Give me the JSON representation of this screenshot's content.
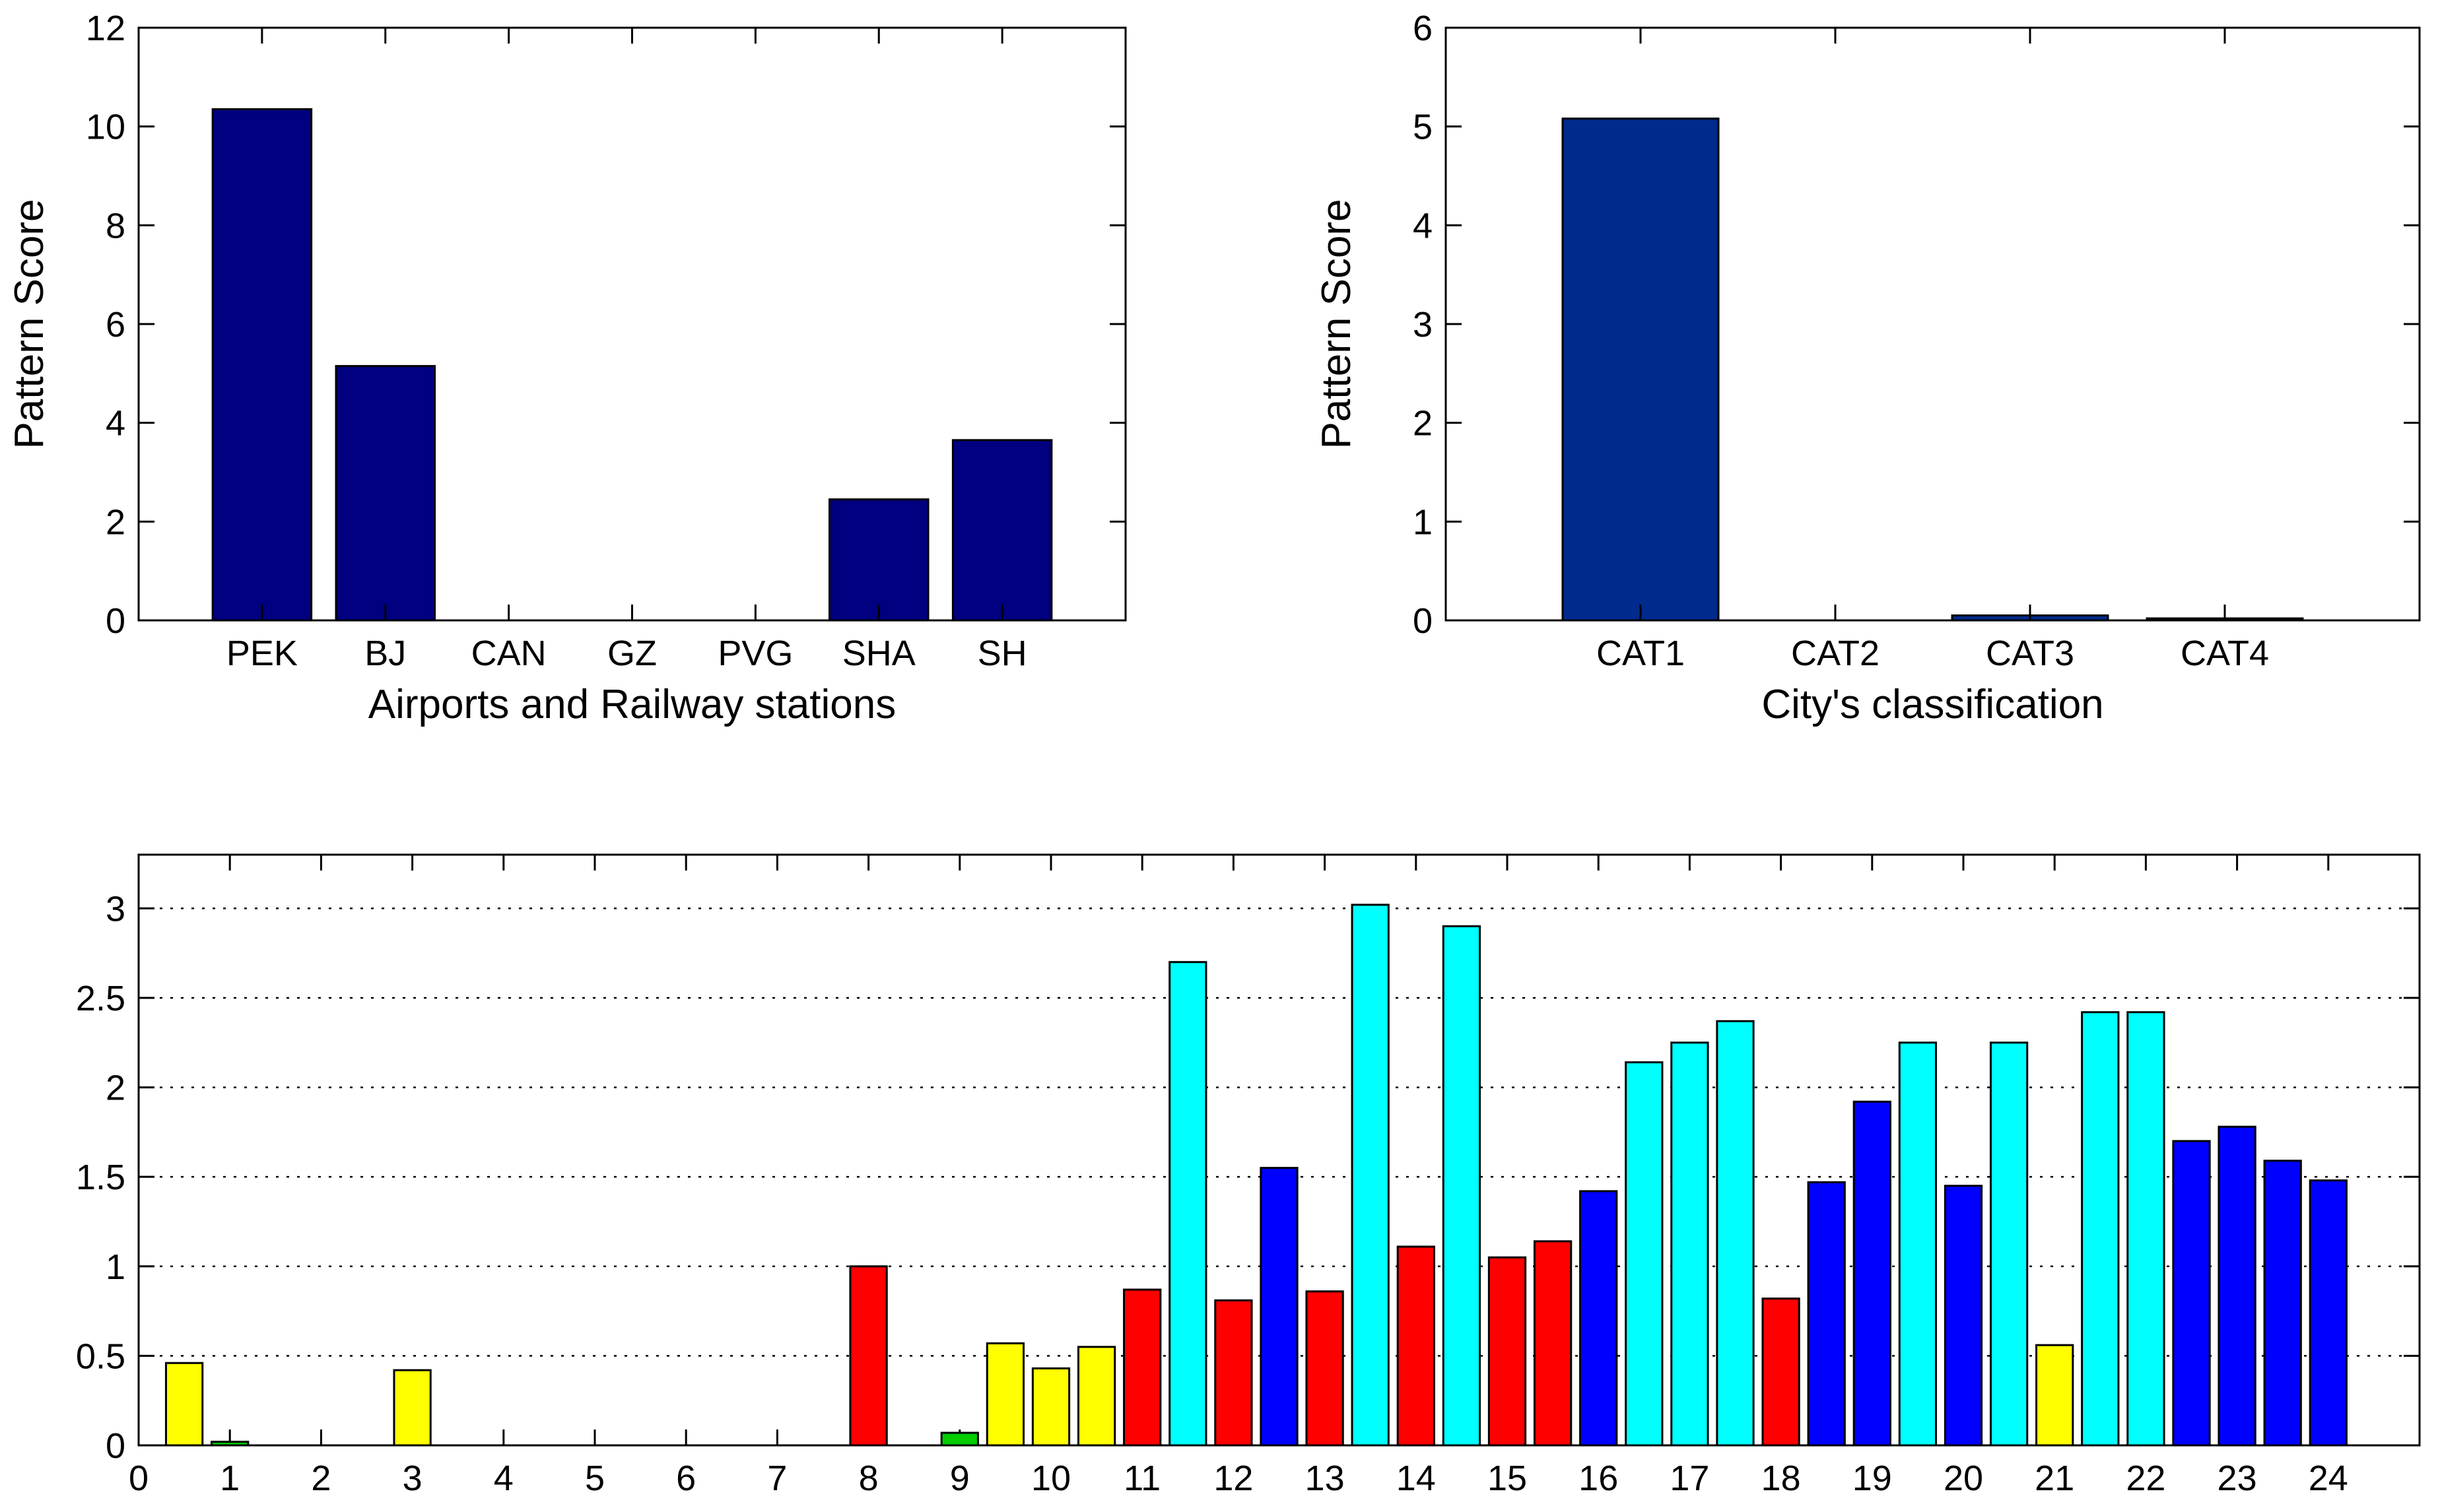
{
  "colors": {
    "navy": "#000080",
    "cat_blue": "#002a8c",
    "yellow": "#ffff00",
    "green": "#00cc00",
    "red": "#ff0000",
    "blue": "#0000ff",
    "cyan": "#00ffff"
  },
  "chart_data": [
    {
      "type": "bar",
      "xlabel": "Airports and Railway stations",
      "ylabel": "Pattern Score",
      "categories": [
        "PEK",
        "BJ",
        "CAN",
        "GZ",
        "PVG",
        "SHA",
        "SH"
      ],
      "values": [
        10.35,
        5.15,
        0,
        0,
        0,
        2.45,
        3.65
      ],
      "ylim": [
        0,
        12
      ],
      "yticks": [
        "0",
        "2",
        "4",
        "6",
        "8",
        "10",
        "12"
      ],
      "grid": false
    },
    {
      "type": "bar",
      "xlabel": "City's classification",
      "ylabel": "Pattern Score",
      "categories": [
        "CAT1",
        "CAT2",
        "CAT3",
        "CAT4"
      ],
      "values": [
        5.08,
        0,
        0.05,
        0.02
      ],
      "ylim": [
        0,
        6
      ],
      "yticks": [
        "0",
        "1",
        "2",
        "3",
        "4",
        "5",
        "6"
      ],
      "grid": false
    },
    {
      "type": "bar",
      "xlabel": "",
      "ylabel": "",
      "xlim": [
        0,
        25
      ],
      "ylim": [
        0,
        3.3
      ],
      "xticks": [
        "0",
        "1",
        "2",
        "3",
        "4",
        "5",
        "6",
        "7",
        "8",
        "9",
        "10",
        "11",
        "12",
        "13",
        "14",
        "15",
        "16",
        "17",
        "18",
        "19",
        "20",
        "21",
        "22",
        "23",
        "24"
      ],
      "yticks": [
        "0",
        "0.5",
        "1",
        "1.5",
        "2",
        "2.5",
        "3"
      ],
      "grid": "y-dotted",
      "bars": [
        {
          "x": 0.5,
          "value": 0.46,
          "color": "yellow"
        },
        {
          "x": 1.0,
          "value": 0.02,
          "color": "green"
        },
        {
          "x": 3.0,
          "value": 0.42,
          "color": "yellow"
        },
        {
          "x": 8.0,
          "value": 1.0,
          "color": "red"
        },
        {
          "x": 9.0,
          "value": 0.07,
          "color": "green"
        },
        {
          "x": 9.5,
          "value": 0.57,
          "color": "yellow"
        },
        {
          "x": 10.0,
          "value": 0.43,
          "color": "yellow"
        },
        {
          "x": 10.5,
          "value": 0.55,
          "color": "yellow"
        },
        {
          "x": 11.0,
          "value": 0.87,
          "color": "red"
        },
        {
          "x": 11.5,
          "value": 2.7,
          "color": "cyan"
        },
        {
          "x": 12.0,
          "value": 0.81,
          "color": "red"
        },
        {
          "x": 12.5,
          "value": 1.55,
          "color": "blue"
        },
        {
          "x": 13.0,
          "value": 0.86,
          "color": "red"
        },
        {
          "x": 13.5,
          "value": 3.02,
          "color": "cyan"
        },
        {
          "x": 14.0,
          "value": 1.11,
          "color": "red"
        },
        {
          "x": 14.5,
          "value": 2.9,
          "color": "cyan"
        },
        {
          "x": 15.0,
          "value": 1.05,
          "color": "red"
        },
        {
          "x": 15.5,
          "value": 1.14,
          "color": "red"
        },
        {
          "x": 16.0,
          "value": 1.42,
          "color": "blue"
        },
        {
          "x": 16.5,
          "value": 2.14,
          "color": "cyan"
        },
        {
          "x": 17.0,
          "value": 2.25,
          "color": "cyan"
        },
        {
          "x": 17.5,
          "value": 2.37,
          "color": "cyan"
        },
        {
          "x": 18.0,
          "value": 0.82,
          "color": "red"
        },
        {
          "x": 18.5,
          "value": 1.47,
          "color": "blue"
        },
        {
          "x": 19.0,
          "value": 1.92,
          "color": "blue"
        },
        {
          "x": 19.5,
          "value": 2.25,
          "color": "cyan"
        },
        {
          "x": 20.0,
          "value": 1.45,
          "color": "blue"
        },
        {
          "x": 20.5,
          "value": 2.25,
          "color": "cyan"
        },
        {
          "x": 21.0,
          "value": 0.56,
          "color": "yellow"
        },
        {
          "x": 21.5,
          "value": 2.42,
          "color": "cyan"
        },
        {
          "x": 22.0,
          "value": 2.42,
          "color": "cyan"
        },
        {
          "x": 22.5,
          "value": 1.7,
          "color": "blue"
        },
        {
          "x": 23.0,
          "value": 1.78,
          "color": "blue"
        },
        {
          "x": 23.5,
          "value": 1.59,
          "color": "blue"
        },
        {
          "x": 24.0,
          "value": 1.48,
          "color": "blue"
        }
      ]
    }
  ]
}
